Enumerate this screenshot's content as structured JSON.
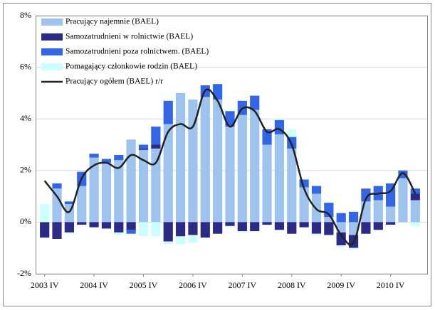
{
  "chart_data": {
    "type": "bar",
    "stacked": true,
    "categories": [
      "2003 IV",
      null,
      null,
      null,
      "2004 IV",
      null,
      null,
      null,
      "2005 IV",
      null,
      null,
      null,
      "2006 IV",
      null,
      null,
      null,
      "2007 IV",
      null,
      null,
      null,
      "2008 IV",
      null,
      null,
      null,
      "2009 IV",
      null,
      null,
      null,
      "2010 IV",
      null,
      null
    ],
    "series": [
      {
        "name": "Pracujący najemnie (BAEL)",
        "color": "#9dc3ee",
        "values": [
          0,
          1.3,
          0.7,
          1.4,
          2.5,
          2.3,
          2.4,
          3.2,
          2.8,
          2.85,
          3.8,
          5.0,
          4.75,
          4.85,
          4.75,
          3.7,
          4.15,
          4.35,
          3.0,
          3.4,
          2.85,
          1.35,
          1.1,
          0.2,
          -0.4,
          -0.5,
          0.8,
          0.85,
          0.6,
          1.7,
          0.85
        ]
      },
      {
        "name": "Samozatrudnieni w rolnictwie (BAEL)",
        "color": "#2b2b87",
        "values": [
          -0.6,
          -0.65,
          -0.4,
          -0.1,
          -0.2,
          -0.25,
          -0.4,
          -0.3,
          0.05,
          0.15,
          -0.75,
          -0.55,
          -0.5,
          -0.6,
          -0.45,
          -0.15,
          -0.35,
          -0.35,
          -0.1,
          -0.3,
          -0.45,
          -0.2,
          -0.45,
          -0.5,
          -0.5,
          -0.5,
          -0.45,
          -0.3,
          -0.1,
          0,
          0.25
        ]
      },
      {
        "name": "Samozatrudnieni poza rolnictwem. (BAEL)",
        "color": "#3366e6",
        "values": [
          0,
          0.2,
          0.1,
          0.55,
          0.15,
          0.15,
          0.2,
          -0.15,
          0.15,
          0.7,
          0.9,
          0,
          0,
          0.45,
          0.6,
          0.6,
          0.55,
          0.55,
          0.6,
          0.55,
          0.45,
          0.3,
          0.3,
          0.55,
          0.35,
          0.4,
          0.5,
          0.55,
          0.9,
          0.3,
          0.2
        ]
      },
      {
        "name": "Pomagający członkowie rodzin (BAEL)",
        "color": "#ccffff",
        "values": [
          0.7,
          0,
          -0.05,
          0,
          0,
          0,
          -0.1,
          0,
          -0.55,
          -0.55,
          -0.1,
          -0.3,
          -0.3,
          0,
          0,
          -0.05,
          -0.05,
          0,
          0,
          0.05,
          0.3,
          0,
          -0.05,
          0,
          -0.05,
          -0.05,
          0,
          0,
          0,
          0,
          -0.15
        ]
      },
      {
        "name": "Pracujący ogółem (BAEL) r/r",
        "color": "#222222",
        "type": "line",
        "values": [
          1.6,
          1.0,
          0.4,
          1.7,
          2.2,
          2.3,
          2.1,
          2.6,
          2.4,
          2.3,
          3.5,
          3.8,
          3.7,
          5.1,
          4.7,
          3.7,
          4.4,
          4.3,
          3.5,
          3.6,
          3.0,
          1.3,
          0.5,
          0.3,
          -0.5,
          -0.8,
          0.9,
          1.1,
          1.2,
          1.9,
          1.1
        ]
      }
    ],
    "ylim": [
      -2,
      8
    ],
    "yticks": [
      {
        "value": -2,
        "label": "-2%"
      },
      {
        "value": 0,
        "label": "0%"
      },
      {
        "value": 2,
        "label": "2%"
      },
      {
        "value": 4,
        "label": "4%"
      },
      {
        "value": 6,
        "label": "6%"
      },
      {
        "value": 8,
        "label": "8%"
      }
    ],
    "grid": true,
    "legend": "upper left"
  }
}
